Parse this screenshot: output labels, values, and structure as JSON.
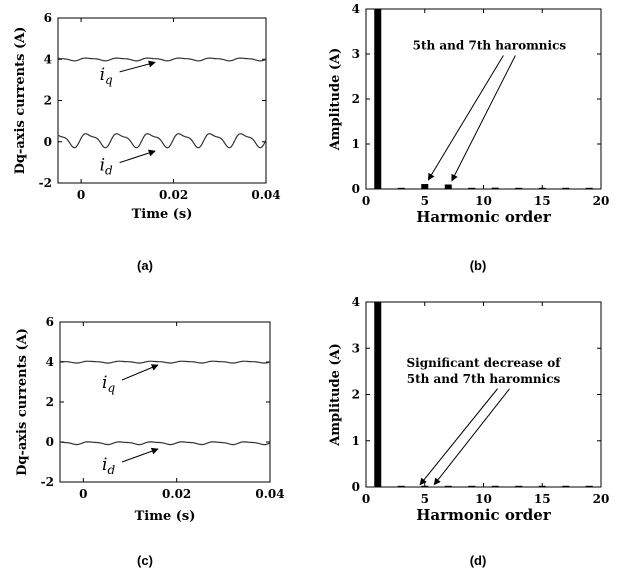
{
  "chart_data": [
    {
      "panel": "a",
      "type": "line",
      "caption": "(a)",
      "ylabel": "Dq-axis currents (A)",
      "xlabel": "Time (s)",
      "xlim": [
        -0.005,
        0.04
      ],
      "ylim": [
        -2,
        6
      ],
      "xticks": [
        0,
        0.02,
        0.04
      ],
      "xtick_labels": [
        "0",
        "0.02",
        "0.04"
      ],
      "yticks": [
        -2,
        0,
        2,
        4,
        6
      ],
      "ytick_labels": [
        "-2",
        "0",
        "2",
        "4",
        "6"
      ],
      "series": [
        {
          "name": "i",
          "sub": "q",
          "base": 4.0,
          "ripple": 0.06,
          "ripple_period": 0.0067,
          "label_at": [
            0.004,
            3.0
          ],
          "arrow_to": [
            0.016,
            3.85
          ]
        },
        {
          "name": "i",
          "sub": "d",
          "base": 0.1,
          "ripple": 0.3,
          "ripple_period": 0.0067,
          "label_at": [
            0.004,
            -1.4
          ],
          "arrow_to": [
            0.016,
            -0.45
          ]
        }
      ]
    },
    {
      "panel": "b",
      "type": "bar",
      "caption": "(b)",
      "ylabel": "Amplitude (A)",
      "xlabel": "Harmonic order",
      "xlim": [
        0,
        20
      ],
      "ylim": [
        0,
        4
      ],
      "xticks": [
        0,
        5,
        10,
        15,
        20
      ],
      "xtick_labels": [
        "0",
        "5",
        "10",
        "15",
        "20"
      ],
      "yticks": [
        0,
        1,
        2,
        3,
        4
      ],
      "ytick_labels": [
        "0",
        "1",
        "2",
        "3",
        "4"
      ],
      "x": [
        1,
        3,
        5,
        7,
        9,
        11,
        13,
        15,
        17,
        19
      ],
      "values": [
        4.0,
        0.02,
        0.11,
        0.1,
        0.02,
        0.03,
        0.02,
        0.02,
        0.02,
        0.02
      ],
      "annotation": {
        "lines": [
          "5th and 7th haromnics"
        ],
        "at": [
          10.5,
          3.1
        ],
        "arrows_to": [
          [
            5.3,
            0.2
          ],
          [
            7.3,
            0.18
          ]
        ]
      }
    },
    {
      "panel": "c",
      "type": "line",
      "caption": "(c)",
      "ylabel": "Dq-axis currents (A)",
      "xlabel": "Time (s)",
      "xlim": [
        -0.005,
        0.04
      ],
      "ylim": [
        -2,
        6
      ],
      "xticks": [
        0,
        0.02,
        0.04
      ],
      "xtick_labels": [
        "0",
        "0.02",
        "0.04"
      ],
      "yticks": [
        -2,
        0,
        2,
        4,
        6
      ],
      "ytick_labels": [
        "-2",
        "0",
        "2",
        "4",
        "6"
      ],
      "series": [
        {
          "name": "i",
          "sub": "q",
          "base": 4.0,
          "ripple": 0.04,
          "ripple_period": 0.0067,
          "label_at": [
            0.004,
            2.7
          ],
          "arrow_to": [
            0.016,
            3.85
          ]
        },
        {
          "name": "i",
          "sub": "d",
          "base": -0.05,
          "ripple": 0.06,
          "ripple_period": 0.0067,
          "label_at": [
            0.004,
            -1.4
          ],
          "arrow_to": [
            0.016,
            -0.35
          ]
        }
      ]
    },
    {
      "panel": "d",
      "type": "bar",
      "caption": "(d)",
      "ylabel": "Amplitude (A)",
      "xlabel": "Harmonic order",
      "xlim": [
        0,
        20
      ],
      "ylim": [
        0,
        4
      ],
      "xticks": [
        0,
        5,
        10,
        15,
        20
      ],
      "xtick_labels": [
        "0",
        "5",
        "10",
        "15",
        "20"
      ],
      "yticks": [
        0,
        1,
        2,
        3,
        4
      ],
      "ytick_labels": [
        "0",
        "1",
        "2",
        "3",
        "4"
      ],
      "x": [
        1,
        3,
        5,
        7,
        9,
        11,
        13,
        15,
        17,
        19
      ],
      "values": [
        4.0,
        0.01,
        0.01,
        0.01,
        0.01,
        0.01,
        0.01,
        0.01,
        0.01,
        0.01
      ],
      "annotation": {
        "lines": [
          "Significant decrease of",
          "5th and 7th haromnics"
        ],
        "at": [
          10.0,
          2.6
        ],
        "arrows_to": [
          [
            4.6,
            0.05
          ],
          [
            5.8,
            0.05
          ]
        ]
      }
    }
  ]
}
